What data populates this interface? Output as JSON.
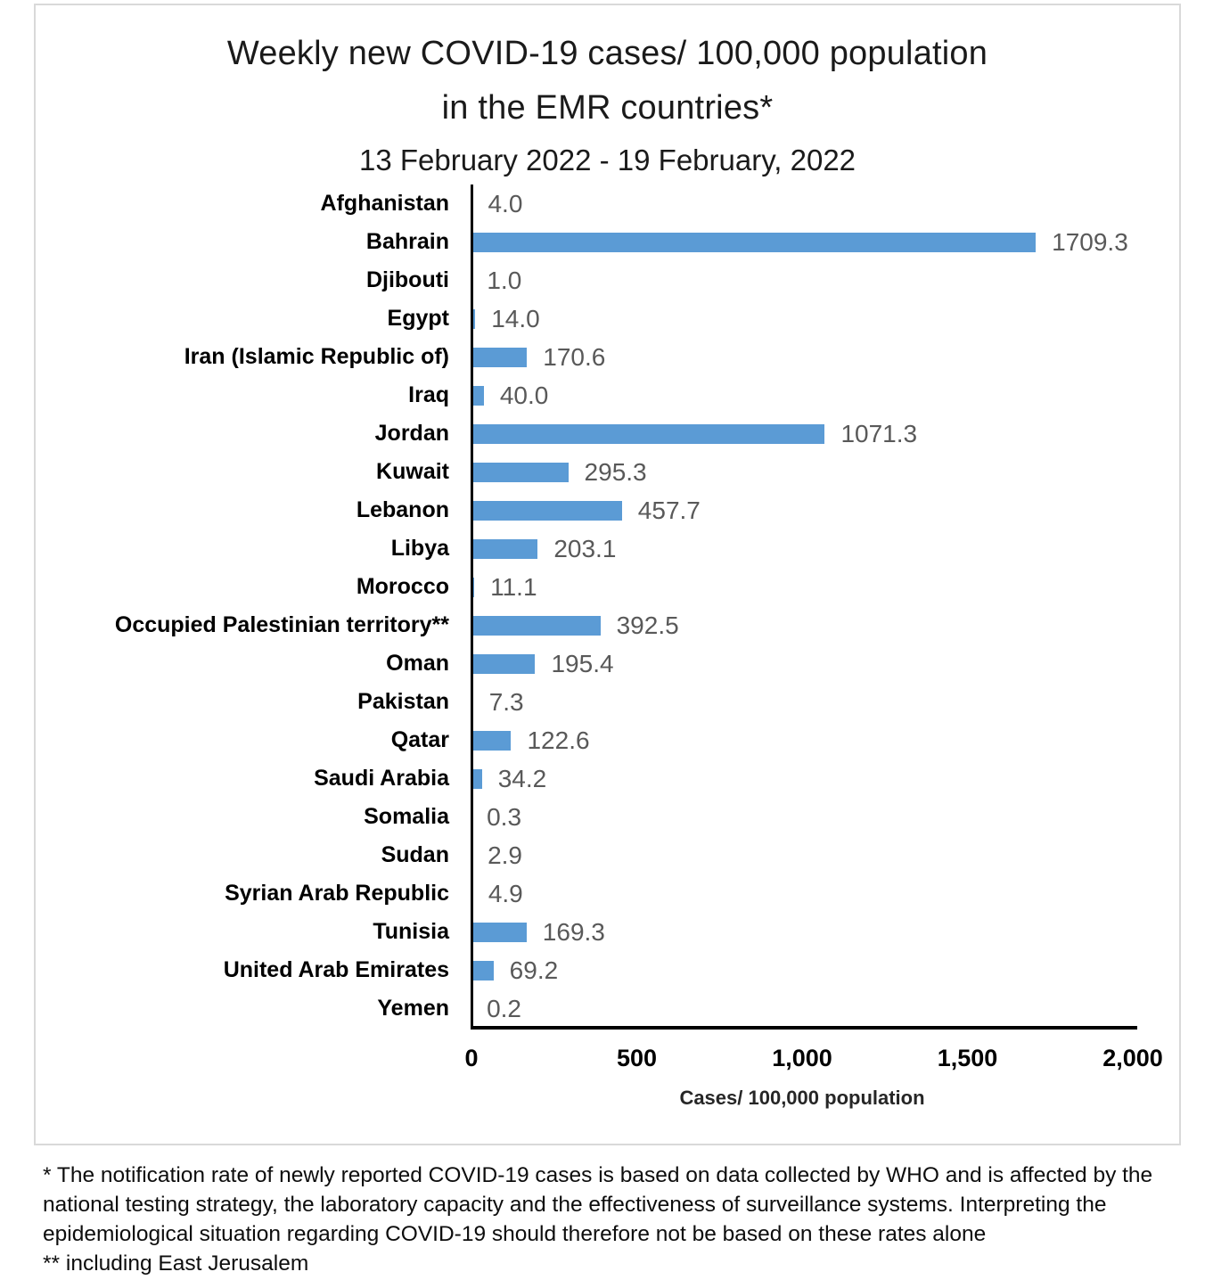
{
  "title": {
    "line1": "Weekly new COVID-19 cases/ 100,000 population",
    "line2": "in the EMR countries*",
    "line3": "13 February 2022 - 19 February, 2022"
  },
  "chart_data": {
    "type": "bar",
    "orientation": "horizontal",
    "title": "Weekly new COVID-19 cases/ 100,000 population in the EMR countries* 13 February 2022 - 19 February, 2022",
    "categories": [
      "Afghanistan",
      "Bahrain",
      "Djibouti",
      "Egypt",
      "Iran (Islamic Republic of)",
      "Iraq",
      "Jordan",
      "Kuwait",
      "Lebanon",
      "Libya",
      "Morocco",
      "Occupied Palestinian territory**",
      "Oman",
      "Pakistan",
      "Qatar",
      "Saudi Arabia",
      "Somalia",
      "Sudan",
      "Syrian Arab Republic",
      "Tunisia",
      "United Arab Emirates",
      "Yemen"
    ],
    "values": [
      4.0,
      1709.3,
      1.0,
      14.0,
      170.6,
      40.0,
      1071.3,
      295.3,
      457.7,
      203.1,
      11.1,
      392.5,
      195.4,
      7.3,
      122.6,
      34.2,
      0.3,
      2.9,
      4.9,
      169.3,
      69.2,
      0.2
    ],
    "xlabel": "Cases/ 100,000 population",
    "xlim": [
      0,
      2000
    ],
    "xticks": [
      0,
      500,
      1000,
      1500,
      2000
    ],
    "xtick_labels": [
      "0",
      "500",
      "1,000",
      "1,500",
      "2,000"
    ],
    "grid": false,
    "legend": false,
    "bar_color": "#5b9bd5",
    "value_label_color": "#595959"
  },
  "footnotes": {
    "note1": "* The notification rate of newly reported COVID-19 cases is based on data collected by WHO and is affected by the national testing strategy, the laboratory capacity and the effectiveness of surveillance systems. Interpreting the epidemiological situation regarding COVID-19 should therefore not be based on these rates alone",
    "note2": "** including East Jerusalem"
  }
}
